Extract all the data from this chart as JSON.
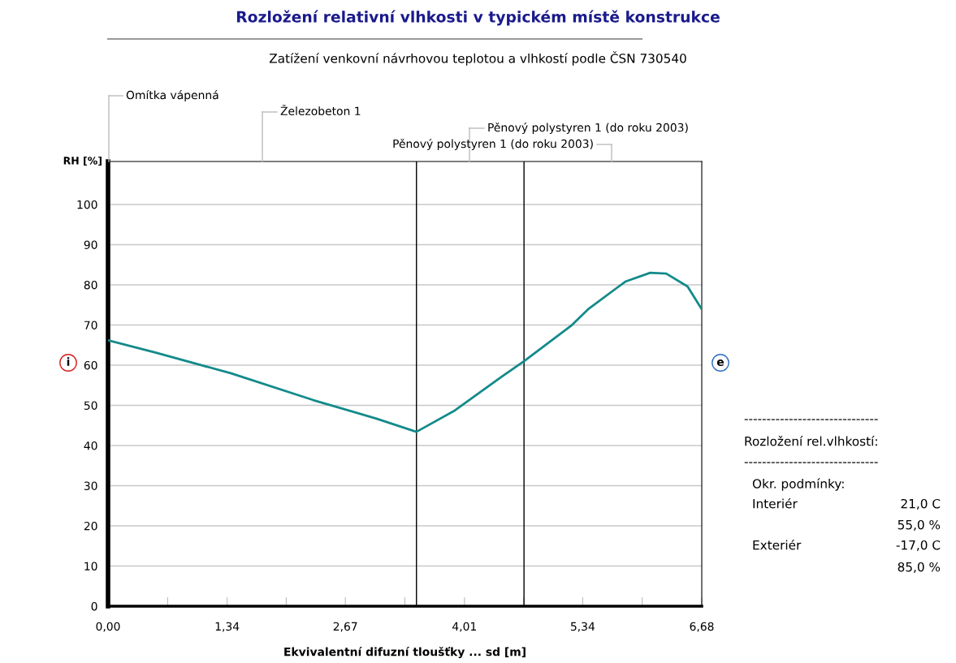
{
  "chart_data": {
    "type": "line",
    "title": "Rozložení relativní vlhkosti v typickém místě konstrukce",
    "subtitle": "Zatížení venkovní návrhovou teplotou a vlhkostí podle ČSN 730540",
    "xlabel": "Ekvivalentní difuzní tloušťky ... sd [m]",
    "ylabel": "RH [%]",
    "series": [
      {
        "color": "#138a8a",
        "x": [
          0,
          0.54,
          1.38,
          2.31,
          3.02,
          3.47,
          3.9,
          4.42,
          4.68,
          5.21,
          5.4,
          5.82,
          6.1,
          6.28,
          6.52,
          6.68
        ],
        "values": [
          66.2,
          63.1,
          58.0,
          51.3,
          46.7,
          43.4,
          48.7,
          57.0,
          61.0,
          69.8,
          73.9,
          80.8,
          83.0,
          82.8,
          79.6,
          73.9
        ]
      }
    ],
    "xlim": [
      0,
      6.68
    ],
    "ylim": [
      0,
      110.7
    ],
    "xticks": [
      {
        "value": 0,
        "label": "0,00"
      },
      {
        "value": 0.67,
        "label": null
      },
      {
        "value": 1.34,
        "label": "1,34"
      },
      {
        "value": 2.005,
        "label": null
      },
      {
        "value": 2.67,
        "label": "2,67"
      },
      {
        "value": 3.34,
        "label": null
      },
      {
        "value": 4.01,
        "label": "4,01"
      },
      {
        "value": 4.675,
        "label": null
      },
      {
        "value": 5.34,
        "label": "5,34"
      },
      {
        "value": 6.01,
        "label": null
      },
      {
        "value": 6.68,
        "label": "6,68"
      }
    ],
    "yticks": [
      0,
      10,
      20,
      30,
      40,
      50,
      60,
      70,
      80,
      90,
      100
    ],
    "grid": "y",
    "marker": "none",
    "line_style": "solid",
    "ref_lines": [
      {
        "axis": "x",
        "value": 3.47,
        "color": "#000000"
      },
      {
        "axis": "x",
        "value": 4.68,
        "color": "#000000"
      }
    ],
    "annotations": [
      "Omítka vápenná",
      "Železobeton 1",
      "Pěnový polystyren 1 (do roku 2003)",
      "Pěnový polystyren 1 (do roku 2003)",
      "i",
      "e",
      "------------------------------",
      "Rozložení rel.vlhkostí:",
      "------------------------------",
      "Okr. podmínky:",
      "Interiér",
      "21,0 C",
      "55,0 %",
      "Exteriér",
      "-17,0 C",
      "85,0 %"
    ]
  }
}
